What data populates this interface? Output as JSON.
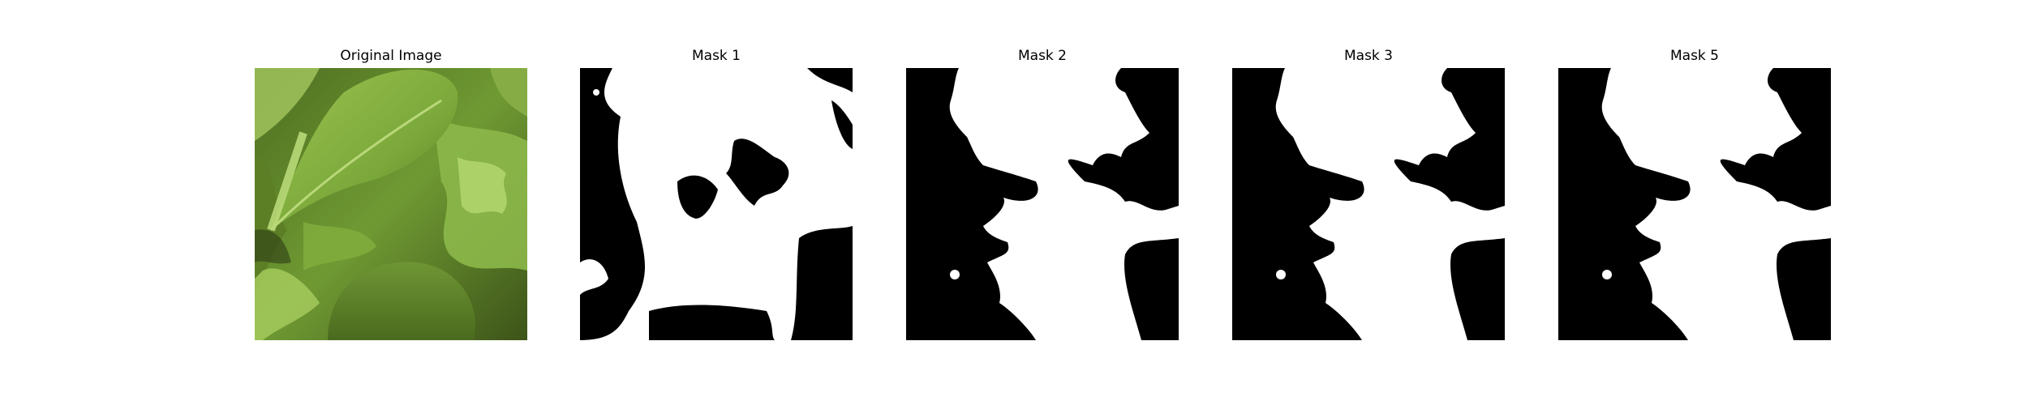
{
  "panels": [
    {
      "title": "Original Image",
      "kind": "photo",
      "content": "green leafy vegetables close-up"
    },
    {
      "title": "Mask 1",
      "kind": "mask"
    },
    {
      "title": "Mask 2",
      "kind": "mask"
    },
    {
      "title": "Mask 3",
      "kind": "mask"
    },
    {
      "title": "Mask 5",
      "kind": "mask"
    }
  ],
  "colors": {
    "background": "#ffffff",
    "mask_foreground": "#ffffff",
    "mask_background": "#000000",
    "leaf_dark": "#3f5a1c",
    "leaf_mid": "#6f9a33",
    "leaf_light": "#a9cf62"
  }
}
